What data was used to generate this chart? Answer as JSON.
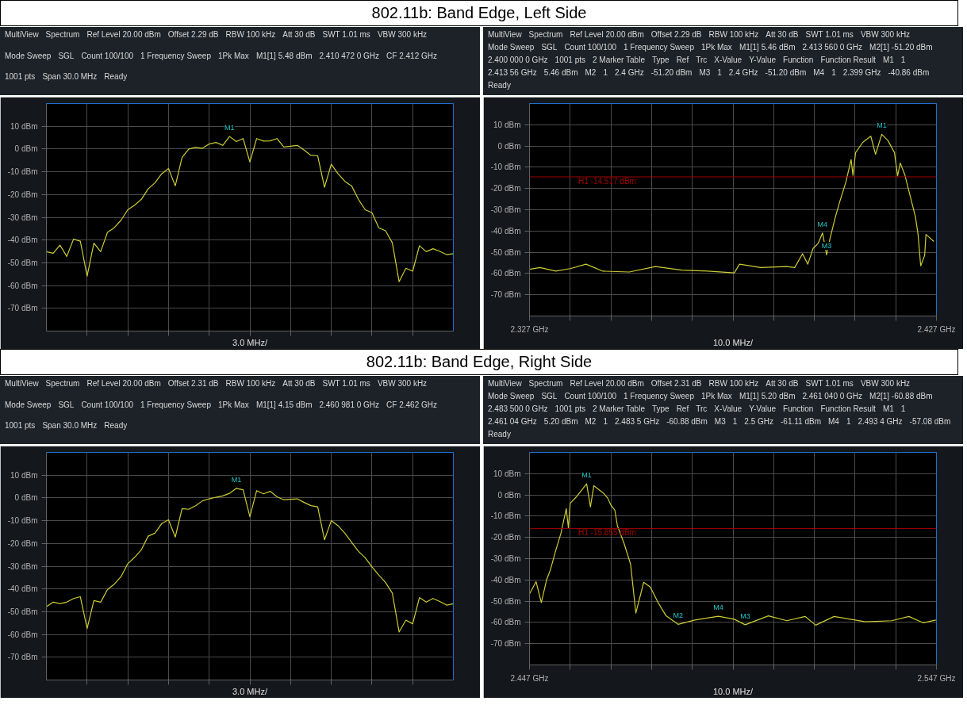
{
  "chart_data": [
    {
      "type": "line",
      "title": "802.11b: Band Edge, Left Side",
      "xlabel": "3.0 MHz/",
      "categories": [
        null,
        null,
        null,
        null,
        null,
        null,
        null,
        null,
        null,
        null,
        null,
        null,
        null,
        null,
        null,
        null,
        null,
        null,
        null,
        null,
        null,
        null,
        null,
        null,
        null,
        null,
        null,
        null,
        null,
        null,
        null,
        null,
        null,
        null,
        null,
        null,
        null,
        null,
        null,
        null,
        null,
        null,
        null,
        null,
        null,
        null,
        null,
        null,
        null,
        null,
        null,
        null,
        null,
        null,
        null,
        null,
        null,
        null,
        null,
        null,
        null
      ],
      "series": [
        {
          "color": "#cccc33",
          "values": [
            -45.1,
            -45.8,
            -42.2,
            -47.2,
            -39.6,
            -40.5,
            -55.9,
            -41.4,
            -45.1,
            -36.6,
            -34.6,
            -31.3,
            -26.7,
            -24.7,
            -22.1,
            -17.5,
            -14.9,
            -10.9,
            -8.6,
            -16.2,
            -3.7,
            0,
            0.7,
            0.3,
            2.2,
            2.9,
            1.6,
            5.5,
            3.3,
            4.6,
            -5.7,
            4.6,
            3.5,
            3.6,
            4.6,
            0.9,
            1.2,
            1.6,
            -0.5,
            -2.8,
            -3.0,
            -16.8,
            -6.7,
            -10.9,
            -14.2,
            -16.2,
            -22.1,
            -26.7,
            -28.0,
            -34.6,
            -35.9,
            -41.2,
            -58.3,
            -52.4,
            -53.7,
            -42.5,
            -45.1,
            -43.8,
            -45.0,
            -46.4,
            -46.0
          ]
        }
      ],
      "ylim": [
        -80,
        20
      ],
      "yticks": [
        {
          "value": 10,
          "label": "10 dBm"
        },
        {
          "value": 0,
          "label": "0 dBm"
        },
        {
          "value": -10,
          "label": "-10 dBm"
        },
        {
          "value": -20,
          "label": "-20 dBm"
        },
        {
          "value": -30,
          "label": "-30 dBm"
        },
        {
          "value": -40,
          "label": "-40 dBm"
        },
        {
          "value": -50,
          "label": "-50 dBm"
        },
        {
          "value": -60,
          "label": "-60 dBm"
        },
        {
          "value": -70,
          "label": "-70 dBm"
        }
      ],
      "grid": true,
      "annotations": [
        "MultiView",
        "Spectrum",
        "Ref Level 20.00 dBm",
        "Offset 2.29 dB",
        "RBW 100 kHz",
        "Att 30 dB",
        "SWT 1.01 ms",
        "VBW 300 kHz",
        "Mode Sweep",
        "SGL",
        "Count 100/100",
        "1 Frequency Sweep",
        "1Pk Max",
        "M1[1] 5.48 dBm",
        "2.410 472 0 GHz",
        "CF 2.412 GHz",
        "1001 pts",
        "Span 30.0 MHz",
        "Ready",
        {
          "text": "M1",
          "y": 5.5
        }
      ]
    },
    {
      "type": "line",
      "xlabel": "10.0 MHz/",
      "x": [
        2.327,
        2.32958,
        2.33345,
        2.337,
        2.34087,
        2.34506,
        2.35152,
        2.35797,
        2.36442,
        2.37087,
        2.37732,
        2.37861,
        2.38377,
        2.39023,
        2.39216,
        2.3941,
        2.39539,
        2.39668,
        2.39797,
        2.399,
        2.4,
        2.40087,
        2.40216,
        2.40313,
        2.40474,
        2.40603,
        2.40648,
        2.40713,
        2.40894,
        2.41087,
        2.41203,
        2.41356,
        2.41506,
        2.41668,
        2.41745,
        2.4181,
        2.41926,
        2.42055,
        2.42184,
        2.42248,
        2.42313,
        2.4241,
        2.42442,
        2.42635
      ],
      "series": [
        {
          "color": "#cccc33",
          "values": [
            -58.0,
            -57.2,
            -58.9,
            -57.7,
            -55.6,
            -58.9,
            -59.3,
            -56.7,
            -58.4,
            -58.9,
            -59.7,
            -55.6,
            -57.2,
            -56.7,
            -57.2,
            -50.7,
            -55.6,
            -48.2,
            -45.7,
            -40.9,
            -51.2,
            -43.3,
            -33.4,
            -26.9,
            -17.0,
            -6.4,
            -13.8,
            -3.1,
            1.8,
            4.6,
            -3.9,
            5.5,
            2.6,
            -3.1,
            -14.1,
            -8.0,
            -13.8,
            -23.6,
            -33.4,
            -41.6,
            -56.4,
            -51.5,
            -41.6,
            -44.9
          ]
        }
      ],
      "xlim": [
        2.327,
        2.427
      ],
      "xticks": [
        {
          "value": 2.327,
          "label": "2.327 GHz"
        },
        {
          "value": 2.337,
          "label": null
        },
        {
          "value": 2.347,
          "label": null
        },
        {
          "value": 2.357,
          "label": null
        },
        {
          "value": 2.367,
          "label": null
        },
        {
          "value": 2.377,
          "label": null
        },
        {
          "value": 2.387,
          "label": null
        },
        {
          "value": 2.397,
          "label": null
        },
        {
          "value": 2.407,
          "label": null
        },
        {
          "value": 2.417,
          "label": null
        },
        {
          "value": 2.427,
          "label": "2.427 GHz"
        }
      ],
      "ylim": [
        -80,
        20
      ],
      "yticks": [
        {
          "value": 10,
          "label": "10 dBm"
        },
        {
          "value": 0,
          "label": "0 dBm"
        },
        {
          "value": -10,
          "label": "-10 dBm"
        },
        {
          "value": -20,
          "label": "-20 dBm"
        },
        {
          "value": -30,
          "label": "-30 dBm"
        },
        {
          "value": -40,
          "label": "-40 dBm"
        },
        {
          "value": -50,
          "label": "-50 dBm"
        },
        {
          "value": -60,
          "label": "-60 dBm"
        },
        {
          "value": -70,
          "label": "-70 dBm"
        }
      ],
      "grid": true,
      "ref_lines": [
        {
          "axis": "y",
          "value": -14.517,
          "label": "H1 -14.517 dBm",
          "color": "#a00000"
        }
      ],
      "annotations": [
        "MultiView",
        "Spectrum",
        "Ref Level 20.00 dBm",
        "Offset 2.29 dB",
        "RBW 100 kHz",
        "Att 30 dB",
        "SWT 1.01 ms",
        "VBW 300 kHz",
        "Mode Sweep",
        "SGL",
        "Count 100/100",
        "1 Frequency Sweep",
        "1Pk Max",
        "M1[1] 5.46 dBm",
        "2.413 560 0 GHz",
        "M2[1] -51.20 dBm",
        "2.400 000 0 GHz",
        "1001 pts",
        "2 Marker Table",
        "Type",
        "Ref",
        "Trc",
        "X-Value",
        "Y-Value",
        "Function",
        "Function Result",
        "M1",
        "1",
        "2.413 56 GHz",
        "5.46 dBm",
        "M2",
        "1",
        "2.4 GHz",
        "-51.20 dBm",
        "M3",
        "1",
        "2.4 GHz",
        "-51.20 dBm",
        "M4",
        "1",
        "2.399 GHz",
        "-40.86 dBm",
        "Ready",
        {
          "text": "M1",
          "x": 2.41356,
          "y": 5.5
        },
        {
          "text": "M4",
          "x": 2.399,
          "y": -40.9
        },
        {
          "text": "M3",
          "x": 2.4,
          "y": -51.2
        }
      ]
    },
    {
      "type": "line",
      "title": "802.11b: Band Edge, Right Side",
      "xlabel": "3.0 MHz/",
      "categories": [
        null,
        null,
        null,
        null,
        null,
        null,
        null,
        null,
        null,
        null,
        null,
        null,
        null,
        null,
        null,
        null,
        null,
        null,
        null,
        null,
        null,
        null,
        null,
        null,
        null,
        null,
        null,
        null,
        null,
        null,
        null,
        null,
        null,
        null,
        null,
        null,
        null,
        null,
        null,
        null,
        null,
        null,
        null,
        null,
        null,
        null,
        null,
        null,
        null,
        null,
        null,
        null,
        null,
        null,
        null,
        null,
        null,
        null,
        null,
        null,
        null
      ],
      "series": [
        {
          "color": "#cccc33",
          "values": [
            -47.8,
            -45.8,
            -46.4,
            -45.8,
            -44.2,
            -43.4,
            -57.4,
            -45.1,
            -45.8,
            -40.3,
            -37.9,
            -34.6,
            -28.9,
            -26.1,
            -22.8,
            -16.8,
            -15.5,
            -11.3,
            -9.6,
            -17.2,
            -4.7,
            -5.0,
            -3.4,
            -1.3,
            -0.4,
            0.3,
            0.9,
            2.0,
            4.2,
            3.6,
            -8.3,
            3.2,
            1.8,
            2.9,
            0.5,
            -0.8,
            -0.6,
            -0.4,
            -2.0,
            -3.4,
            -3.9,
            -18.4,
            -10.0,
            -12.2,
            -15.5,
            -19.5,
            -23.4,
            -26.3,
            -30.3,
            -33.9,
            -37.2,
            -41.8,
            -58.9,
            -53.7,
            -55.3,
            -43.8,
            -45.8,
            -44.2,
            -45.5,
            -47.1,
            -46.5
          ]
        }
      ],
      "ylim": [
        -80,
        20
      ],
      "yticks": [
        {
          "value": 10,
          "label": "10 dBm"
        },
        {
          "value": 0,
          "label": "0 dBm"
        },
        {
          "value": -10,
          "label": "-10 dBm"
        },
        {
          "value": -20,
          "label": "-20 dBm"
        },
        {
          "value": -30,
          "label": "-30 dBm"
        },
        {
          "value": -40,
          "label": "-40 dBm"
        },
        {
          "value": -50,
          "label": "-50 dBm"
        },
        {
          "value": -60,
          "label": "-60 dBm"
        },
        {
          "value": -70,
          "label": "-70 dBm"
        }
      ],
      "grid": true,
      "annotations": [
        "MultiView",
        "Spectrum",
        "Ref Level 20.00 dBm",
        "Offset 2.31 dB",
        "RBW 100 kHz",
        "Att 30 dB",
        "SWT 1.01 ms",
        "VBW 300 kHz",
        "Mode Sweep",
        "SGL",
        "Count 100/100",
        "1 Frequency Sweep",
        "1Pk Max",
        "M1[1] 4.15 dBm",
        "2.460 981 0 GHz",
        "CF 2.462 GHz",
        "1001 pts",
        "Span 30.0 MHz",
        "Ready",
        {
          "text": "M1",
          "y": 4.2
        }
      ]
    },
    {
      "type": "line",
      "xlabel": "10.0 MHz/",
      "x": [
        2.447,
        2.44861,
        2.4499,
        2.45119,
        2.45216,
        2.45345,
        2.45474,
        2.45603,
        2.45655,
        2.457,
        2.45861,
        2.46104,
        2.46197,
        2.46281,
        2.46506,
        2.46623,
        2.467,
        2.46797,
        2.46861,
        2.47023,
        2.47184,
        2.47313,
        2.47506,
        2.47668,
        2.47861,
        2.48055,
        2.4835,
        2.48765,
        2.4934,
        2.49732,
        2.5,
        2.50571,
        2.51023,
        2.51474,
        2.51732,
        2.52184,
        2.52958,
        2.53603,
        2.54023,
        2.54377,
        2.54687
      ],
      "series": [
        {
          "color": "#cccc33",
          "values": [
            -46.6,
            -40.8,
            -50.7,
            -40.0,
            -35.1,
            -26.1,
            -17.9,
            -6.4,
            -15.4,
            -3.9,
            -0.7,
            5.2,
            -5.6,
            4.3,
            1.0,
            -1.5,
            -4.8,
            -7.2,
            -14.6,
            -22.8,
            -32.6,
            -55.6,
            -41.1,
            -43.3,
            -50.7,
            -56.9,
            -60.9,
            -58.9,
            -57.1,
            -58.5,
            -61.1,
            -56.9,
            -59.2,
            -57.2,
            -61.3,
            -57.2,
            -59.7,
            -59.2,
            -57.2,
            -60.2,
            -58.9
          ]
        }
      ],
      "xlim": [
        2.447,
        2.547
      ],
      "xticks": [
        {
          "value": 2.447,
          "label": "2.447 GHz"
        },
        {
          "value": 2.457,
          "label": null
        },
        {
          "value": 2.467,
          "label": null
        },
        {
          "value": 2.477,
          "label": null
        },
        {
          "value": 2.487,
          "label": null
        },
        {
          "value": 2.497,
          "label": null
        },
        {
          "value": 2.507,
          "label": null
        },
        {
          "value": 2.517,
          "label": null
        },
        {
          "value": 2.527,
          "label": null
        },
        {
          "value": 2.537,
          "label": null
        },
        {
          "value": 2.547,
          "label": "2.547 GHz"
        }
      ],
      "ylim": [
        -80,
        20
      ],
      "yticks": [
        {
          "value": 10,
          "label": "10 dBm"
        },
        {
          "value": 0,
          "label": "0 dBm"
        },
        {
          "value": -10,
          "label": "-10 dBm"
        },
        {
          "value": -20,
          "label": "-20 dBm"
        },
        {
          "value": -30,
          "label": "-30 dBm"
        },
        {
          "value": -40,
          "label": "-40 dBm"
        },
        {
          "value": -50,
          "label": "-50 dBm"
        },
        {
          "value": -60,
          "label": "-60 dBm"
        },
        {
          "value": -70,
          "label": "-70 dBm"
        }
      ],
      "grid": true,
      "ref_lines": [
        {
          "axis": "y",
          "value": -15.855,
          "label": "H1 -15.855 dBm",
          "color": "#a00000"
        }
      ],
      "annotations": [
        "MultiView",
        "Spectrum",
        "Ref Level 20.00 dBm",
        "Offset 2.31 dB",
        "RBW 100 kHz",
        "Att 30 dB",
        "SWT 1.01 ms",
        "VBW 300 kHz",
        "Mode Sweep",
        "SGL",
        "Count 100/100",
        "1 Frequency Sweep",
        "1Pk Max",
        "M1[1] 5.20 dBm",
        "2.461 040 0 GHz",
        "M2[1] -60.88 dBm",
        "2.483 500 0 GHz",
        "1001 pts",
        "2 Marker Table",
        "Type",
        "Ref",
        "Trc",
        "X-Value",
        "Y-Value",
        "Function",
        "Function Result",
        "M1",
        "1",
        "2.461 04 GHz",
        "5.20 dBm",
        "M2",
        "1",
        "2.483 5 GHz",
        "-60.88 dBm",
        "M3",
        "1",
        "2.5 GHz",
        "-61.11 dBm",
        "M4",
        "1",
        "2.493 4 GHz",
        "-57.08 dBm",
        "Ready",
        {
          "text": "M1",
          "x": 2.46104,
          "y": 5.2
        },
        {
          "text": "M2",
          "x": 2.4835,
          "y": -60.9
        },
        {
          "text": "M4",
          "x": 2.4934,
          "y": -57.1
        },
        {
          "text": "M3",
          "x": 2.5,
          "y": -61.1
        }
      ]
    }
  ]
}
